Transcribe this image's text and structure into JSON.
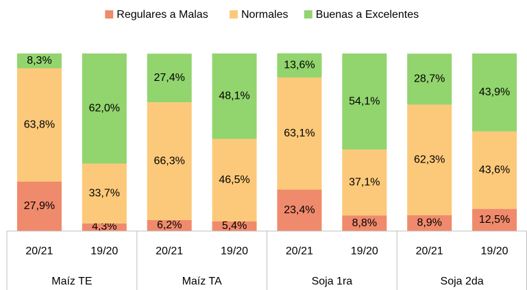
{
  "chart_data": {
    "type": "stacked_bar",
    "categories": [
      "20/21",
      "19/20",
      "20/21",
      "19/20",
      "20/21",
      "19/20",
      "20/21",
      "19/20"
    ],
    "groups": [
      "Maíz TE",
      "Maíz TA",
      "Soja 1ra",
      "Soja 2da"
    ],
    "ylim": [
      0,
      100
    ],
    "legend": "top",
    "series": [
      {
        "name": "Regulares a Malas",
        "color": "#f08a6c",
        "values": [
          27.9,
          4.3,
          6.2,
          5.4,
          23.4,
          8.8,
          8.9,
          12.5
        ],
        "value_labels": [
          "27,9%",
          "4,3%",
          "6,2%",
          "5,4%",
          "23,4%",
          "8,8%",
          "8,9%",
          "12,5%"
        ]
      },
      {
        "name": "Normales",
        "color": "#fcc97a",
        "values": [
          63.8,
          33.7,
          66.3,
          46.5,
          63.1,
          37.1,
          62.3,
          43.6
        ],
        "value_labels": [
          "63,8%",
          "33,7%",
          "66,3%",
          "46,5%",
          "63,1%",
          "37,1%",
          "62,3%",
          "43,6%"
        ]
      },
      {
        "name": "Buenas a Excelentes",
        "color": "#92d46e",
        "values": [
          8.3,
          62.0,
          27.4,
          48.1,
          13.6,
          54.1,
          28.7,
          43.9
        ],
        "value_labels": [
          "8,3%",
          "62,0%",
          "27,4%",
          "48,1%",
          "13,6%",
          "54,1%",
          "28,7%",
          "43,9%"
        ]
      }
    ]
  }
}
